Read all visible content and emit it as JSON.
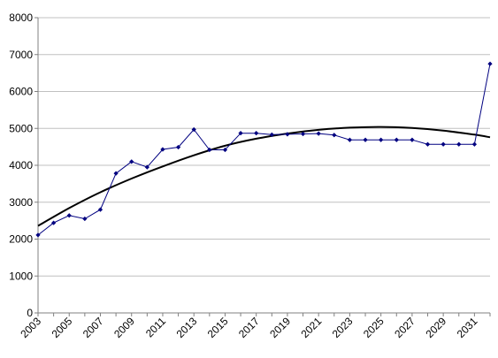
{
  "chart_data": {
    "type": "line",
    "title": "",
    "xlabel": "",
    "ylabel": "",
    "ylim": [
      0,
      8000
    ],
    "y_ticks": [
      "0",
      "1000",
      "2000",
      "3000",
      "4000",
      "5000",
      "6000",
      "7000",
      "8000"
    ],
    "x_range": [
      2003,
      2032
    ],
    "x_tick_labels": [
      "2003",
      "2005",
      "2007",
      "2009",
      "2011",
      "2013",
      "2015",
      "2017",
      "2019",
      "2021",
      "2023",
      "2025",
      "2027",
      "2029",
      "2031"
    ],
    "grid": "horizontal",
    "legend": "none",
    "series": [
      {
        "marker": "diamond",
        "color": "#000080",
        "x": [
          2003,
          2004,
          2005,
          2006,
          2007,
          2008,
          2009,
          2010,
          2011,
          2012,
          2013,
          2014,
          2015,
          2016,
          2017,
          2018,
          2019,
          2020,
          2021,
          2022,
          2023,
          2024,
          2025,
          2026,
          2027,
          2028,
          2029,
          2030,
          2031,
          2032
        ],
        "values": [
          2110,
          2440,
          2640,
          2550,
          2800,
          3780,
          4100,
          3950,
          4430,
          4490,
          4970,
          4420,
          4420,
          4870,
          4870,
          4830,
          4840,
          4850,
          4860,
          4820,
          4690,
          4690,
          4690,
          4690,
          4690,
          4570,
          4570,
          4570,
          4570,
          6750
        ]
      },
      {
        "type": "trendline",
        "color": "#000000",
        "x": [
          2003,
          2005,
          2007,
          2009,
          2011,
          2013,
          2015,
          2017,
          2019,
          2021,
          2023,
          2025,
          2027,
          2029,
          2031,
          2032
        ],
        "values": [
          2360,
          2840,
          3270,
          3640,
          3970,
          4270,
          4530,
          4720,
          4860,
          4960,
          5020,
          5040,
          5010,
          4940,
          4830,
          4760
        ]
      }
    ]
  }
}
